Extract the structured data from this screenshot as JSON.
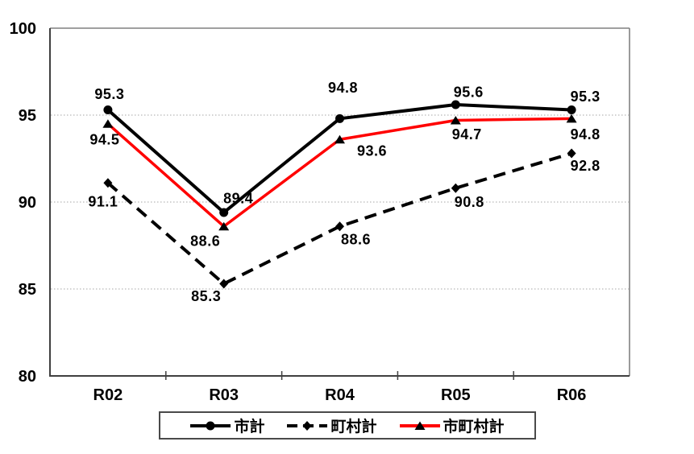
{
  "chart_data": {
    "type": "line",
    "title": "",
    "xlabel": "",
    "ylabel": "",
    "categories": [
      "R02",
      "R03",
      "R04",
      "R05",
      "R06"
    ],
    "ylim": [
      80,
      100
    ],
    "yticks": [
      100,
      95,
      90,
      85,
      80
    ],
    "ytick_labels": [
      "100",
      "95",
      "90",
      "85",
      "80"
    ],
    "grid": "horizontal dotted gridlines at 85, 90, 95",
    "legend_position": "bottom",
    "series": [
      {
        "name": "市計",
        "values": [
          95.3,
          89.4,
          94.8,
          95.6,
          95.3
        ],
        "point_labels": [
          "95.3",
          "89.4",
          "94.8",
          "95.6",
          "95.3"
        ],
        "line_color": "#000000",
        "line_style": "solid",
        "marker": "circle",
        "marker_color": "#000000",
        "label_offsets": [
          [
            2,
            -20
          ],
          [
            18,
            -18
          ],
          [
            4,
            -39
          ],
          [
            16,
            -16
          ],
          [
            17,
            -17
          ]
        ]
      },
      {
        "name": "町村計",
        "values": [
          91.1,
          85.3,
          88.6,
          90.8,
          92.8
        ],
        "point_labels": [
          "91.1",
          "85.3",
          "88.6",
          "90.8",
          "92.8"
        ],
        "line_color": "#000000",
        "line_style": "dashed",
        "marker": "diamond",
        "marker_color": "#000000",
        "label_offsets": [
          [
            -6,
            23
          ],
          [
            -22,
            15
          ],
          [
            20,
            16
          ],
          [
            17,
            17
          ],
          [
            17,
            15
          ]
        ]
      },
      {
        "name": "市町村計",
        "values": [
          94.5,
          88.6,
          93.6,
          94.7,
          94.8
        ],
        "point_labels": [
          "94.5",
          "88.6",
          "93.6",
          "94.7",
          "94.8"
        ],
        "line_color": "#ff0000",
        "line_style": "solid",
        "marker": "triangle",
        "marker_color": "#000000",
        "label_offsets": [
          [
            -4,
            19
          ],
          [
            -23,
            18
          ],
          [
            40,
            14
          ],
          [
            14,
            17
          ],
          [
            17,
            19
          ]
        ]
      }
    ],
    "colors": {
      "series_black": "#000000",
      "series_red": "#ff0000",
      "gridline": "#a6a6a6",
      "plot_border": "#808080",
      "axis": "#404040",
      "text": "#000000",
      "background": "#ffffff"
    }
  }
}
